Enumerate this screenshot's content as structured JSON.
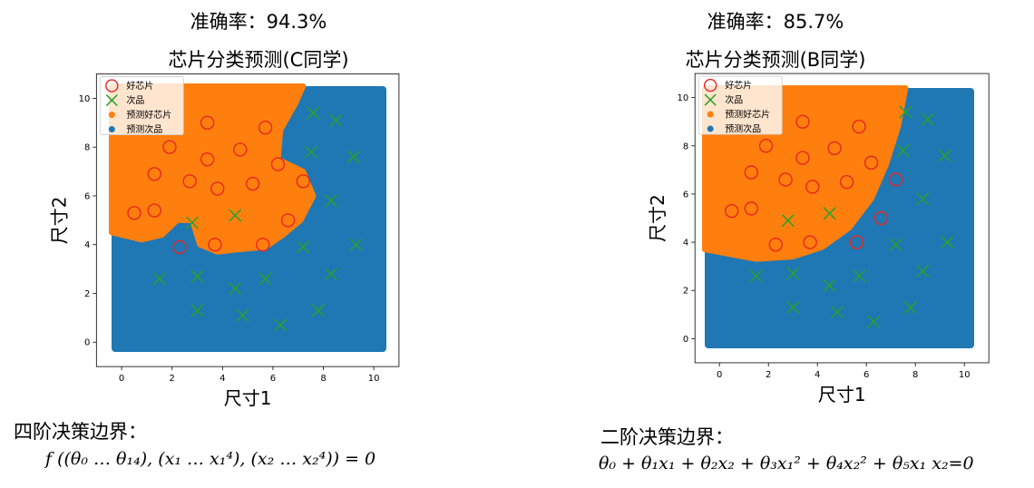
{
  "chart_data": [
    {
      "type": "scatter",
      "accuracy_label": "准确率：94.3%",
      "title": "芯片分类预测(C同学)",
      "xlabel": "尺寸1",
      "ylabel": "尺寸2",
      "xlim": [
        -1,
        11
      ],
      "ylim": [
        -1,
        11
      ],
      "xticks": [
        0,
        2,
        4,
        6,
        8,
        10
      ],
      "yticks": [
        0,
        2,
        4,
        6,
        8,
        10
      ],
      "legend": [
        "好芯片",
        "次品",
        "预测好芯片",
        "预测次品"
      ],
      "legend_position": "top-left",
      "colors": {
        "good": "#e8261f",
        "bad": "#2ca02c",
        "pred_good": "#ff7f0e",
        "pred_bad": "#1f77b4"
      },
      "good_points": [
        [
          0.5,
          5.3
        ],
        [
          1.3,
          5.4
        ],
        [
          1.3,
          6.9
        ],
        [
          1.9,
          8.0
        ],
        [
          2.3,
          3.9
        ],
        [
          2.7,
          6.6
        ],
        [
          3.4,
          9.0
        ],
        [
          3.4,
          7.5
        ],
        [
          3.7,
          4.0
        ],
        [
          3.8,
          6.3
        ],
        [
          4.7,
          7.9
        ],
        [
          5.2,
          6.5
        ],
        [
          5.6,
          4.0
        ],
        [
          5.7,
          8.8
        ],
        [
          6.2,
          7.3
        ],
        [
          6.6,
          5.0
        ],
        [
          7.2,
          6.6
        ]
      ],
      "bad_points": [
        [
          1.5,
          2.6
        ],
        [
          2.8,
          4.9
        ],
        [
          3.0,
          2.7
        ],
        [
          3.0,
          1.3
        ],
        [
          4.5,
          2.2
        ],
        [
          4.5,
          5.2
        ],
        [
          4.8,
          1.1
        ],
        [
          5.7,
          2.6
        ],
        [
          6.3,
          0.7
        ],
        [
          7.5,
          7.8
        ],
        [
          7.6,
          9.4
        ],
        [
          7.2,
          3.9
        ],
        [
          7.8,
          1.3
        ],
        [
          8.3,
          2.8
        ],
        [
          8.3,
          5.8
        ],
        [
          8.5,
          9.1
        ],
        [
          9.2,
          7.6
        ],
        [
          9.3,
          4.0
        ]
      ],
      "pred_good_region": [
        [
          -0.4,
          10.5
        ],
        [
          7.2,
          10.5
        ],
        [
          6.9,
          9.8
        ],
        [
          6.3,
          8.7
        ],
        [
          6.2,
          7.5
        ],
        [
          7.2,
          7.0
        ],
        [
          7.6,
          6.0
        ],
        [
          7.1,
          5.0
        ],
        [
          6.4,
          4.4
        ],
        [
          5.7,
          3.9
        ],
        [
          4.6,
          3.8
        ],
        [
          3.8,
          3.7
        ],
        [
          3.1,
          4.0
        ],
        [
          2.8,
          5.0
        ],
        [
          2.2,
          5.0
        ],
        [
          1.6,
          4.4
        ],
        [
          0.8,
          4.2
        ],
        [
          -0.4,
          4.5
        ]
      ],
      "equation_title": "四阶决策边界：",
      "equation": "f ((θ₀ … θ₁₄), (x₁ … x₁⁴), (x₂ … x₂⁴)) = 0"
    },
    {
      "type": "scatter",
      "accuracy_label": "准确率：85.7%",
      "title": "芯片分类预测(B同学)",
      "xlabel": "尺寸1",
      "ylabel": "尺寸2",
      "xlim": [
        -1,
        11
      ],
      "ylim": [
        -1,
        11
      ],
      "xticks": [
        0,
        2,
        4,
        6,
        8,
        10
      ],
      "yticks": [
        0,
        2,
        4,
        6,
        8,
        10
      ],
      "legend": [
        "好芯片",
        "次品",
        "预测好芯片",
        "预测次品"
      ],
      "legend_position": "top-left",
      "colors": {
        "good": "#e8261f",
        "bad": "#2ca02c",
        "pred_good": "#ff7f0e",
        "pred_bad": "#1f77b4"
      },
      "good_points": [
        [
          0.5,
          5.3
        ],
        [
          1.3,
          5.4
        ],
        [
          1.3,
          6.9
        ],
        [
          1.9,
          8.0
        ],
        [
          2.3,
          3.9
        ],
        [
          2.7,
          6.6
        ],
        [
          3.4,
          9.0
        ],
        [
          3.4,
          7.5
        ],
        [
          3.7,
          4.0
        ],
        [
          3.8,
          6.3
        ],
        [
          4.7,
          7.9
        ],
        [
          5.2,
          6.5
        ],
        [
          5.6,
          4.0
        ],
        [
          5.7,
          8.8
        ],
        [
          6.2,
          7.3
        ],
        [
          6.6,
          5.0
        ],
        [
          7.2,
          6.6
        ]
      ],
      "bad_points": [
        [
          1.5,
          2.6
        ],
        [
          2.8,
          4.9
        ],
        [
          3.0,
          2.7
        ],
        [
          3.0,
          1.3
        ],
        [
          4.5,
          2.2
        ],
        [
          4.5,
          5.2
        ],
        [
          4.8,
          1.1
        ],
        [
          5.7,
          2.6
        ],
        [
          6.3,
          0.7
        ],
        [
          7.5,
          7.8
        ],
        [
          7.6,
          9.4
        ],
        [
          7.2,
          3.9
        ],
        [
          7.8,
          1.3
        ],
        [
          8.3,
          2.8
        ],
        [
          8.3,
          5.8
        ],
        [
          8.5,
          9.1
        ],
        [
          9.2,
          7.6
        ],
        [
          9.3,
          4.0
        ]
      ],
      "pred_good_region": [
        [
          -0.6,
          10.4
        ],
        [
          7.6,
          10.4
        ],
        [
          7.3,
          8.8
        ],
        [
          6.8,
          7.2
        ],
        [
          6.2,
          5.8
        ],
        [
          5.3,
          4.6
        ],
        [
          4.2,
          3.8
        ],
        [
          3.0,
          3.4
        ],
        [
          1.5,
          3.3
        ],
        [
          -0.6,
          3.7
        ]
      ],
      "equation_title": "二阶决策边界：",
      "equation": "θ₀ + θ₁x₁ + θ₂x₂ + θ₃x₁² + θ₄x₂² + θ₅x₁ x₂=0"
    }
  ]
}
